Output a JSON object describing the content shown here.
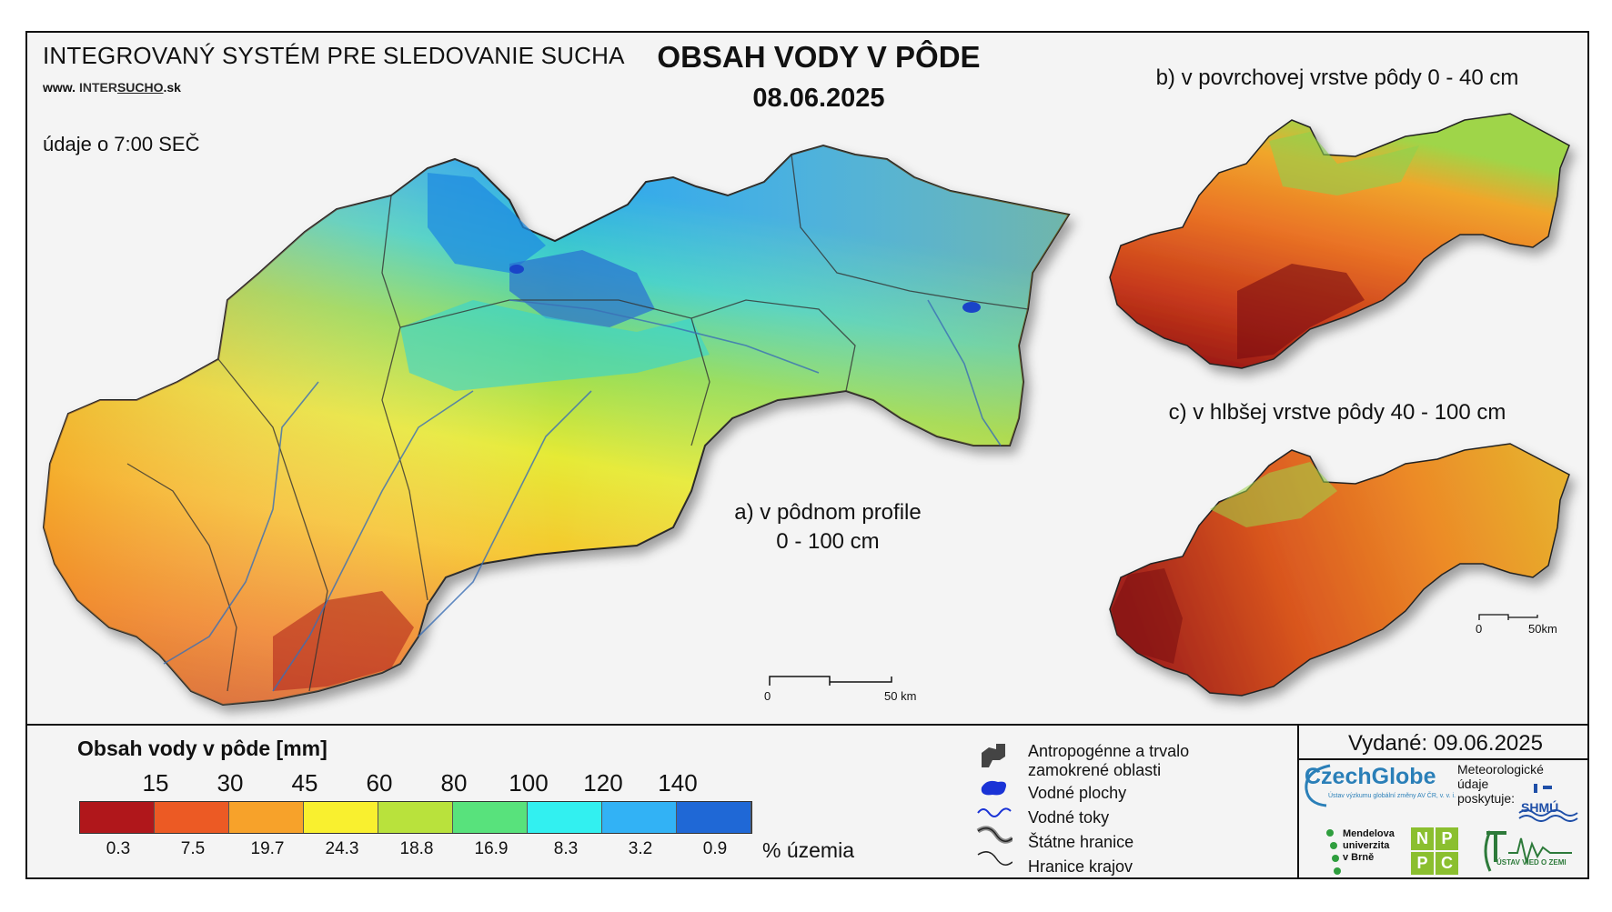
{
  "header": {
    "system_title": "INTEGROVANÝ SYSTÉM PRE SLEDOVANIE SUCHA",
    "website_prefix": "www.",
    "website_brand_a": "INTER",
    "website_brand_b": "SUCHO",
    "website_suffix": ".sk",
    "data_time": "údaje o 7:00 SEČ",
    "main_title": "OBSAH VODY V PÔDE",
    "date": "08.06.2025"
  },
  "maps": {
    "a_label_line1": "a) v pôdnom profile",
    "a_label_line2": "0 - 100 cm",
    "b_label": "b) v povrchovej vrstve pôdy 0 - 40 cm",
    "c_label": "c) v hlbšej vrstve pôdy 40 - 100 cm",
    "scale_main_start": "0",
    "scale_main_end": "50 km",
    "scale_small_start": "0",
    "scale_small_end": "50km"
  },
  "legend": {
    "title": "Obsah vody v pôde  [mm]",
    "thresholds": [
      "15",
      "30",
      "45",
      "60",
      "80",
      "100",
      "120",
      "140"
    ],
    "colors": [
      "#b0171b",
      "#ec5a24",
      "#f7a22a",
      "#f9f02f",
      "#b9e23c",
      "#58e27c",
      "#32f0f0",
      "#32b2f5",
      "#1f68d6"
    ],
    "percent_values": [
      "0.3",
      "7.5",
      "19.7",
      "24.3",
      "18.8",
      "16.9",
      "8.3",
      "3.2",
      "0.9"
    ],
    "percent_unit": "% územia"
  },
  "symbols": {
    "anthropogenic_line1": "Antropogénne a trvalo",
    "anthropogenic_line2": "zamokrené oblasti",
    "water_bodies": "Vodné plochy",
    "water_streams": "Vodné toky",
    "state_border": "Štátne hranice",
    "region_border": "Hranice krajov"
  },
  "footer": {
    "issued": "Vydané: 09.06.2025",
    "czechglobe": "CzechGlobe",
    "czechglobe_sub": "Ústav výzkumu globální změny AV ČR, v. v. i.",
    "meteo_line1": "Meteorologické",
    "meteo_line2": "údaje",
    "meteo_line3": "poskytuje:",
    "shmu": "SHMÚ",
    "mendel_line1": "Mendelova",
    "mendel_line2": "univerzita",
    "mendel_line3": "v Brně",
    "npc": [
      "N",
      "P",
      "P",
      "C"
    ],
    "uvz": "ÚSTAV VIED O ZEMI"
  }
}
